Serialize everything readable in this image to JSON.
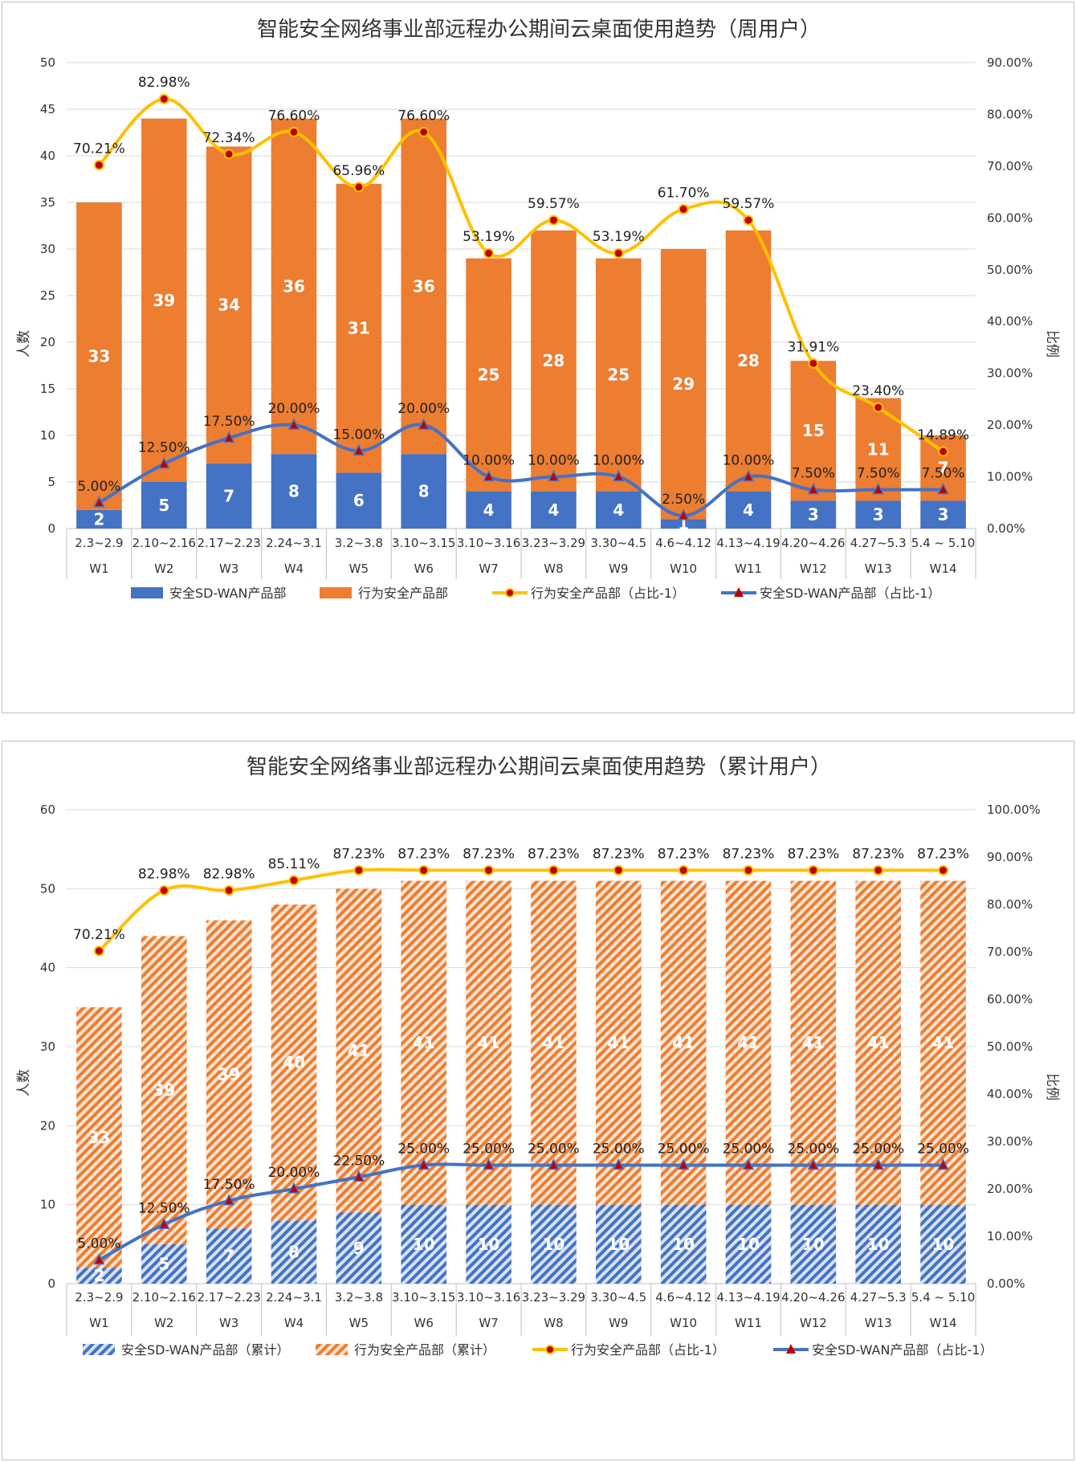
{
  "charts": [
    {
      "title": "智能安全网络事业部远程办公期间云桌面使用趋势（周用户）",
      "ylabel": "人数",
      "y2label": "比例",
      "ylim": [
        0,
        50
      ],
      "ystep": 5,
      "y2lim": [
        0,
        90
      ],
      "y2step": 10,
      "hatched": false,
      "legend": [
        "安全SD-WAN产品部",
        "行为安全产品部",
        "行为安全产品部（占比-1）",
        "安全SD-WAN产品部（占比-1）"
      ]
    },
    {
      "title": "智能安全网络事业部远程办公期间云桌面使用趋势（累计用户）",
      "ylabel": "人数",
      "y2label": "比例",
      "ylim": [
        0,
        60
      ],
      "ystep": 10,
      "y2lim": [
        0,
        100
      ],
      "y2step": 10,
      "hatched": true,
      "legend": [
        "安全SD-WAN产品部（累计）",
        "行为安全产品部（累计）",
        "行为安全产品部（占比-1）",
        "安全SD-WAN产品部（占比-1）"
      ]
    }
  ],
  "chart_data": [
    {
      "type": "bar",
      "stacked": true,
      "title": "智能安全网络事业部远程办公期间云桌面使用趋势（周用户）",
      "categories": [
        "W1",
        "W2",
        "W3",
        "W4",
        "W5",
        "W6",
        "W7",
        "W8",
        "W9",
        "W10",
        "W11",
        "W12",
        "W13",
        "W14"
      ],
      "date_ranges": [
        "2.3~2.9",
        "2.10~2.16",
        "2.17~2.23",
        "2.24~3.1",
        "3.2~3.8",
        "3.10~3.15",
        "3.10~3.16",
        "3.23~3.29",
        "3.30~4.5",
        "4.6~4.12",
        "4.13~4.19",
        "4.20~4.26",
        "4.27~5.3",
        "5.4 ~ 5.10"
      ],
      "ylabel": "人数",
      "y2label": "比例",
      "ylim": [
        0,
        50
      ],
      "y2lim": [
        0,
        90
      ],
      "series": [
        {
          "name": "安全SD-WAN产品部",
          "type": "bar",
          "color": "#4472c4",
          "values": [
            2,
            5,
            7,
            8,
            6,
            8,
            4,
            4,
            4,
            1,
            4,
            3,
            3,
            3
          ]
        },
        {
          "name": "行为安全产品部",
          "type": "bar",
          "color": "#ed7d31",
          "values": [
            33,
            39,
            34,
            36,
            31,
            36,
            25,
            28,
            25,
            29,
            28,
            15,
            11,
            7
          ]
        },
        {
          "name": "行为安全产品部（占比-1）",
          "type": "line",
          "axis": "secondary",
          "color": "#ffc000",
          "values": [
            70.21,
            82.98,
            72.34,
            76.6,
            65.96,
            76.6,
            53.19,
            59.57,
            53.19,
            61.7,
            59.57,
            31.91,
            23.4,
            14.89
          ],
          "labels": [
            "70.21%",
            "82.98%",
            "72.34%",
            "76.60%",
            "65.96%",
            "76.60%",
            "53.19%",
            "59.57%",
            "53.19%",
            "61.70%",
            "59.57%",
            "31.91%",
            "23.40%",
            "14.89%"
          ]
        },
        {
          "name": "安全SD-WAN产品部（占比-1）",
          "type": "line",
          "axis": "secondary",
          "color": "#4472c4",
          "values": [
            5.0,
            12.5,
            17.5,
            20.0,
            15.0,
            20.0,
            10.0,
            10.0,
            10.0,
            2.5,
            10.0,
            7.5,
            7.5,
            7.5
          ],
          "labels": [
            "5.00%",
            "12.50%",
            "17.50%",
            "20.00%",
            "15.00%",
            "20.00%",
            "10.00%",
            "10.00%",
            "10.00%",
            "2.50%",
            "10.00%",
            "7.50%",
            "7.50%",
            "7.50%"
          ]
        }
      ]
    },
    {
      "type": "bar",
      "stacked": true,
      "title": "智能安全网络事业部远程办公期间云桌面使用趋势（累计用户）",
      "categories": [
        "W1",
        "W2",
        "W3",
        "W4",
        "W5",
        "W6",
        "W7",
        "W8",
        "W9",
        "W10",
        "W11",
        "W12",
        "W13",
        "W14"
      ],
      "date_ranges": [
        "2.3~2.9",
        "2.10~2.16",
        "2.17~2.23",
        "2.24~3.1",
        "3.2~3.8",
        "3.10~3.15",
        "3.10~3.16",
        "3.23~3.29",
        "3.30~4.5",
        "4.6~4.12",
        "4.13~4.19",
        "4.20~4.26",
        "4.27~5.3",
        "5.4 ~ 5.10"
      ],
      "ylabel": "人数",
      "y2label": "比例",
      "ylim": [
        0,
        60
      ],
      "y2lim": [
        0,
        100
      ],
      "series": [
        {
          "name": "安全SD-WAN产品部（累计）",
          "type": "bar",
          "color": "#4472c4",
          "values": [
            2,
            5,
            7,
            8,
            9,
            10,
            10,
            10,
            10,
            10,
            10,
            10,
            10,
            10
          ]
        },
        {
          "name": "行为安全产品部（累计）",
          "type": "bar",
          "color": "#ed7d31",
          "values": [
            33,
            39,
            39,
            40,
            41,
            41,
            41,
            41,
            41,
            41,
            41,
            41,
            41,
            41
          ]
        },
        {
          "name": "行为安全产品部（占比-1）",
          "type": "line",
          "axis": "secondary",
          "color": "#ffc000",
          "values": [
            70.21,
            82.98,
            82.98,
            85.11,
            87.23,
            87.23,
            87.23,
            87.23,
            87.23,
            87.23,
            87.23,
            87.23,
            87.23,
            87.23
          ],
          "labels": [
            "70.21%",
            "82.98%",
            "82.98%",
            "85.11%",
            "87.23%",
            "87.23%",
            "87.23%",
            "87.23%",
            "87.23%",
            "87.23%",
            "87.23%",
            "87.23%",
            "87.23%",
            "87.23%"
          ]
        },
        {
          "name": "安全SD-WAN产品部（占比-1）",
          "type": "line",
          "axis": "secondary",
          "color": "#4472c4",
          "values": [
            5.0,
            12.5,
            17.5,
            20.0,
            22.5,
            25.0,
            25.0,
            25.0,
            25.0,
            25.0,
            25.0,
            25.0,
            25.0,
            25.0
          ],
          "labels": [
            "5.00%",
            "12.50%",
            "17.50%",
            "20.00%",
            "22.50%",
            "25.00%",
            "25.00%",
            "25.00%",
            "25.00%",
            "25.00%",
            "25.00%",
            "25.00%",
            "25.00%",
            "25.00%"
          ]
        }
      ]
    }
  ]
}
